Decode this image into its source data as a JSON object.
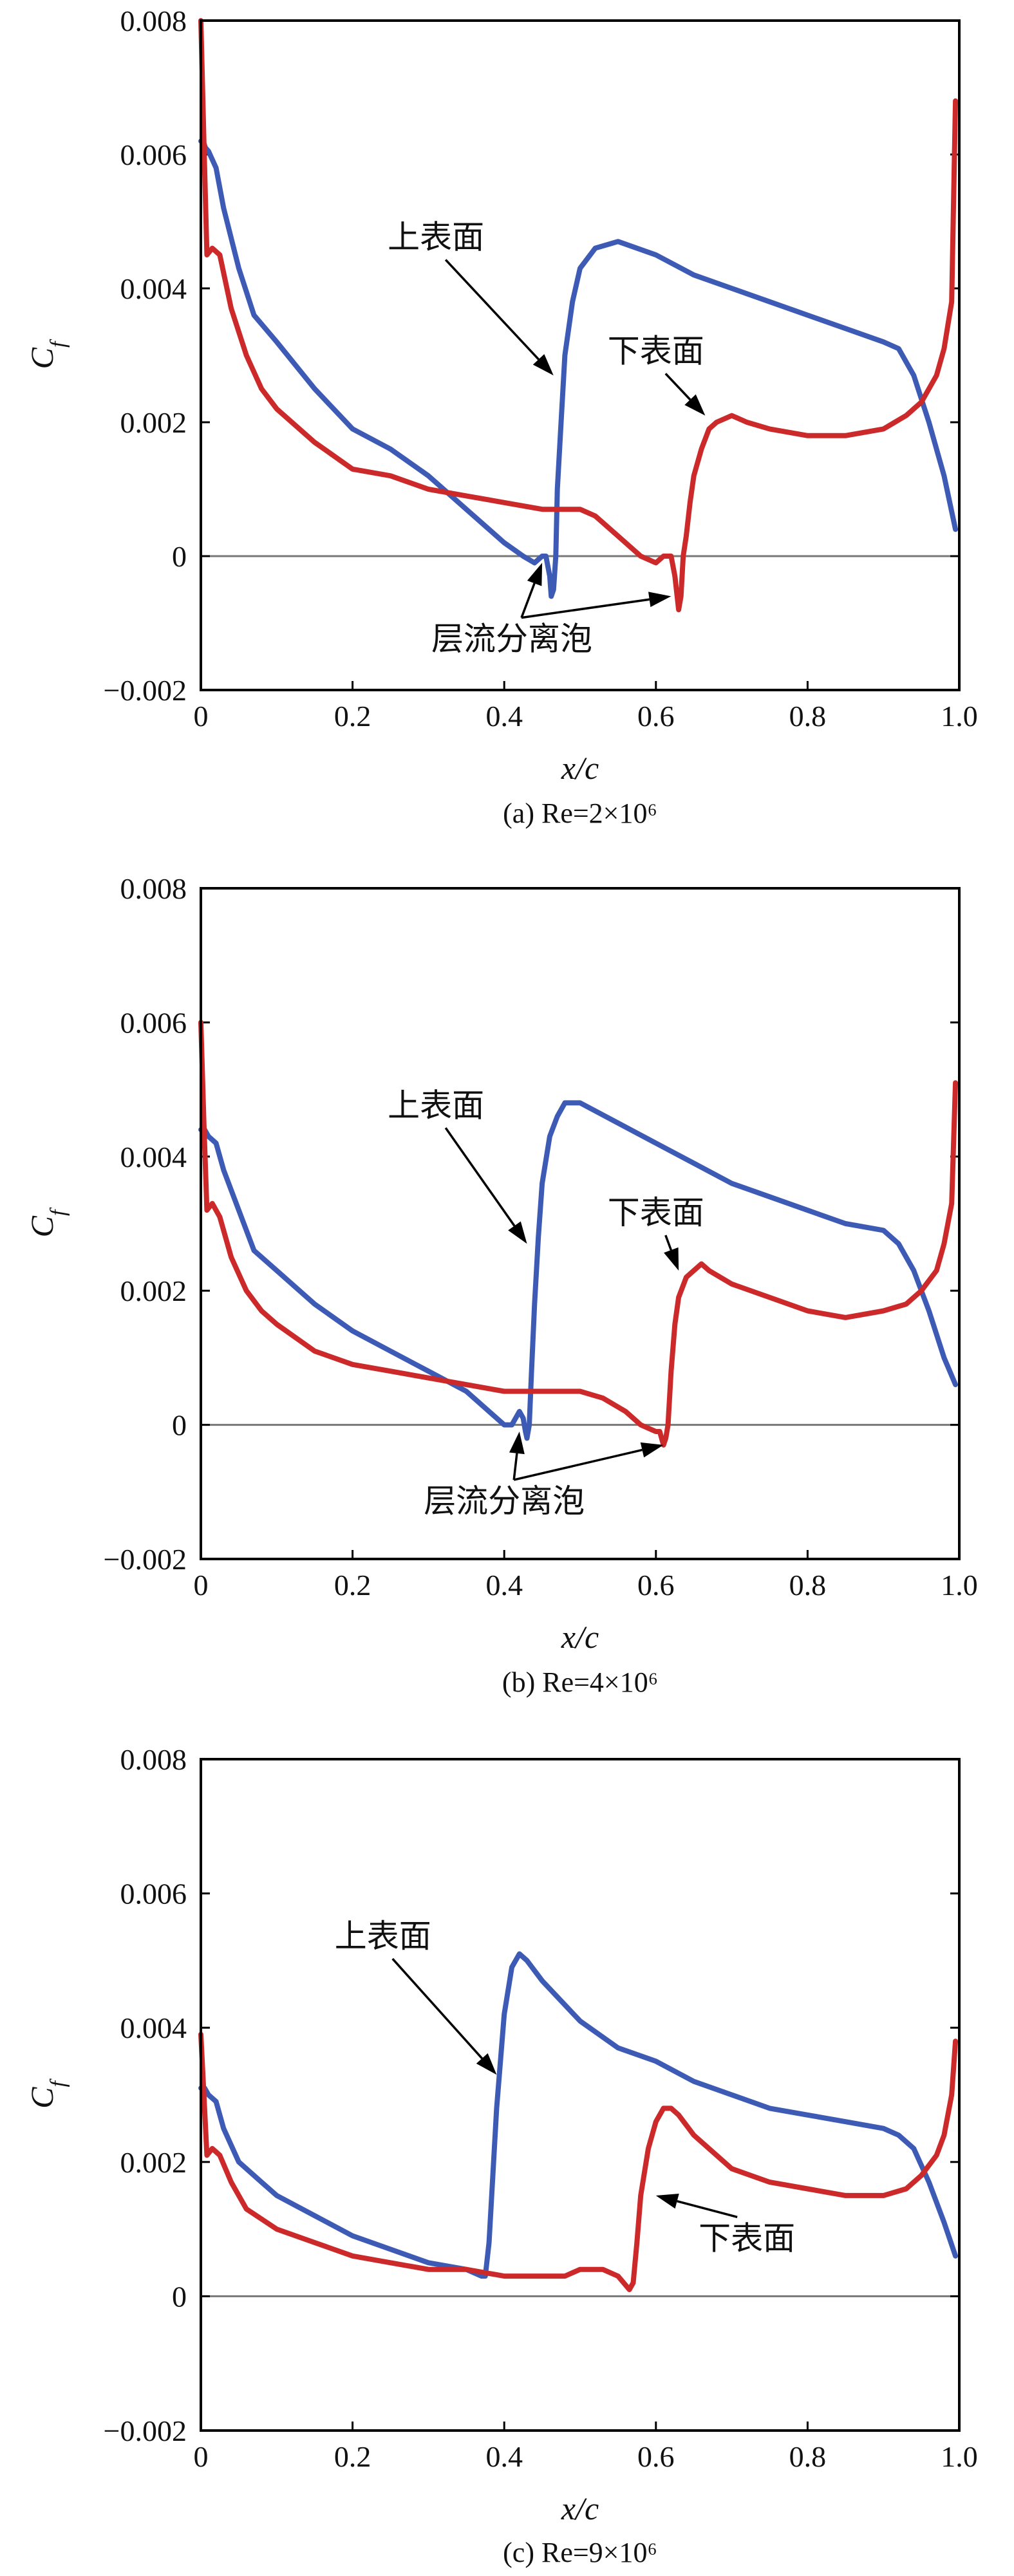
{
  "chart_data": [
    {
      "type": "line",
      "title": "",
      "caption": "(a) Re=2×10⁶",
      "xlabel": "x/c",
      "ylabel": "C_f",
      "xlim": [
        0,
        1.0
      ],
      "ylim": [
        -0.002,
        0.008
      ],
      "xticks": [
        "0",
        "0.2",
        "0.4",
        "0.6",
        "0.8",
        "1.0"
      ],
      "yticks": [
        "−0.002",
        "0",
        "0.002",
        "0.004",
        "0.006",
        "0.008"
      ],
      "zero_line": true,
      "series": [
        {
          "name": "上表面",
          "color": "#3d5bb5",
          "x": [
            0.0,
            0.003,
            0.006,
            0.01,
            0.02,
            0.03,
            0.05,
            0.07,
            0.1,
            0.15,
            0.2,
            0.25,
            0.3,
            0.35,
            0.4,
            0.425,
            0.44,
            0.45,
            0.455,
            0.46,
            0.462,
            0.465,
            0.468,
            0.47,
            0.475,
            0.48,
            0.49,
            0.5,
            0.52,
            0.55,
            0.6,
            0.65,
            0.7,
            0.75,
            0.8,
            0.85,
            0.9,
            0.92,
            0.94,
            0.96,
            0.98,
            0.995
          ],
          "y": [
            0.0062,
            0.0062,
            0.0061,
            0.00605,
            0.0058,
            0.0052,
            0.0043,
            0.0036,
            0.0032,
            0.0025,
            0.0019,
            0.0016,
            0.0012,
            0.0007,
            0.0002,
            0.0,
            -0.0001,
            0.0,
            0.0,
            -0.0003,
            -0.0006,
            -0.0005,
            0.0,
            0.001,
            0.002,
            0.003,
            0.0038,
            0.0043,
            0.0046,
            0.0047,
            0.0045,
            0.0042,
            0.004,
            0.0038,
            0.0036,
            0.0034,
            0.0032,
            0.0031,
            0.0027,
            0.002,
            0.0012,
            0.0004
          ]
        },
        {
          "name": "下表面",
          "color": "#cc2a2a",
          "x": [
            0.0,
            0.004,
            0.008,
            0.015,
            0.025,
            0.04,
            0.06,
            0.08,
            0.1,
            0.15,
            0.2,
            0.25,
            0.3,
            0.35,
            0.4,
            0.45,
            0.48,
            0.5,
            0.52,
            0.55,
            0.58,
            0.6,
            0.61,
            0.62,
            0.625,
            0.63,
            0.633,
            0.636,
            0.64,
            0.645,
            0.65,
            0.66,
            0.67,
            0.68,
            0.7,
            0.72,
            0.75,
            0.8,
            0.85,
            0.9,
            0.93,
            0.95,
            0.97,
            0.98,
            0.99,
            0.995
          ],
          "y": [
            0.008,
            0.0062,
            0.0045,
            0.0046,
            0.0045,
            0.0037,
            0.003,
            0.0025,
            0.0022,
            0.0017,
            0.0013,
            0.0012,
            0.001,
            0.0009,
            0.0008,
            0.0007,
            0.0007,
            0.0007,
            0.0006,
            0.0003,
            0.0,
            -0.0001,
            0.0,
            0.0,
            -0.0003,
            -0.0008,
            -0.0006,
            0.0,
            0.0003,
            0.0008,
            0.0012,
            0.0016,
            0.0019,
            0.002,
            0.0021,
            0.002,
            0.0019,
            0.0018,
            0.0018,
            0.0019,
            0.0021,
            0.0023,
            0.0027,
            0.0031,
            0.0038,
            0.0068
          ]
        }
      ],
      "annotations": [
        {
          "text": "上表面",
          "x": 0.31,
          "y": 0.0046,
          "arrow_to": [
            0.465,
            0.0027
          ]
        },
        {
          "text": "下表面",
          "x": 0.6,
          "y": 0.0029,
          "arrow_to": [
            0.665,
            0.0021
          ]
        },
        {
          "text": "层流分离泡",
          "x": 0.41,
          "y": -0.0014,
          "arrow_to_list": [
            [
              0.45,
              -0.0001
            ],
            [
              0.62,
              -0.0006
            ]
          ]
        }
      ]
    },
    {
      "type": "line",
      "title": "",
      "caption": "(b) Re=4×10⁶",
      "xlabel": "x/c",
      "ylabel": "C_f",
      "xlim": [
        0,
        1.0
      ],
      "ylim": [
        -0.002,
        0.008
      ],
      "xticks": [
        "0",
        "0.2",
        "0.4",
        "0.6",
        "0.8",
        "1.0"
      ],
      "yticks": [
        "−0.002",
        "0",
        "0.002",
        "0.004",
        "0.006",
        "0.008"
      ],
      "zero_line": true,
      "series": [
        {
          "name": "上表面",
          "color": "#3d5bb5",
          "x": [
            0.0,
            0.005,
            0.01,
            0.02,
            0.03,
            0.05,
            0.07,
            0.1,
            0.15,
            0.2,
            0.25,
            0.3,
            0.35,
            0.38,
            0.4,
            0.41,
            0.42,
            0.425,
            0.428,
            0.43,
            0.433,
            0.436,
            0.44,
            0.445,
            0.45,
            0.46,
            0.47,
            0.48,
            0.5,
            0.55,
            0.6,
            0.65,
            0.7,
            0.75,
            0.8,
            0.85,
            0.9,
            0.92,
            0.94,
            0.96,
            0.98,
            0.995
          ],
          "y": [
            0.0044,
            0.0044,
            0.0043,
            0.0042,
            0.0038,
            0.0032,
            0.0026,
            0.0023,
            0.0018,
            0.0014,
            0.0011,
            0.0008,
            0.0005,
            0.0002,
            0.0,
            0.0,
            0.0002,
            0.0001,
            -0.0001,
            -0.0002,
            0.0,
            0.0008,
            0.0018,
            0.0028,
            0.0036,
            0.0043,
            0.0046,
            0.0048,
            0.0048,
            0.0045,
            0.0042,
            0.0039,
            0.0036,
            0.0034,
            0.0032,
            0.003,
            0.0029,
            0.0027,
            0.0023,
            0.0017,
            0.001,
            0.0006
          ]
        },
        {
          "name": "下表面",
          "color": "#cc2a2a",
          "x": [
            0.0,
            0.004,
            0.008,
            0.015,
            0.025,
            0.04,
            0.06,
            0.08,
            0.1,
            0.15,
            0.2,
            0.25,
            0.3,
            0.35,
            0.4,
            0.45,
            0.48,
            0.5,
            0.53,
            0.56,
            0.58,
            0.6,
            0.605,
            0.61,
            0.613,
            0.616,
            0.62,
            0.625,
            0.63,
            0.64,
            0.65,
            0.66,
            0.67,
            0.7,
            0.75,
            0.8,
            0.85,
            0.9,
            0.93,
            0.95,
            0.97,
            0.98,
            0.99,
            0.995
          ],
          "y": [
            0.006,
            0.0045,
            0.0032,
            0.0033,
            0.0031,
            0.0025,
            0.002,
            0.0017,
            0.0015,
            0.0011,
            0.0009,
            0.0008,
            0.0007,
            0.0006,
            0.0005,
            0.0005,
            0.0005,
            0.0005,
            0.0004,
            0.0002,
            0.0,
            -0.0001,
            -0.0001,
            -0.0003,
            -0.0002,
            0.0,
            0.0008,
            0.0015,
            0.0019,
            0.0022,
            0.0023,
            0.0024,
            0.0023,
            0.0021,
            0.0019,
            0.0017,
            0.0016,
            0.0017,
            0.0018,
            0.002,
            0.0023,
            0.0027,
            0.0033,
            0.0051
          ]
        }
      ],
      "annotations": [
        {
          "text": "上表面",
          "x": 0.31,
          "y": 0.0046,
          "arrow_to": [
            0.43,
            0.0027
          ]
        },
        {
          "text": "下表面",
          "x": 0.6,
          "y": 0.003,
          "arrow_to": [
            0.63,
            0.0023
          ]
        },
        {
          "text": "层流分离泡",
          "x": 0.4,
          "y": -0.0013,
          "arrow_to_list": [
            [
              0.42,
              -0.0001
            ],
            [
              0.61,
              -0.0003
            ]
          ]
        }
      ]
    },
    {
      "type": "line",
      "title": "",
      "caption": "(c) Re=9×10⁶",
      "xlabel": "x/c",
      "ylabel": "C_f",
      "xlim": [
        0,
        1.0
      ],
      "ylim": [
        -0.002,
        0.008
      ],
      "xticks": [
        "0",
        "0.2",
        "0.4",
        "0.6",
        "0.8",
        "1.0"
      ],
      "yticks": [
        "−0.002",
        "0",
        "0.002",
        "0.004",
        "0.006",
        "0.008"
      ],
      "zero_line": true,
      "series": [
        {
          "name": "上表面",
          "color": "#3d5bb5",
          "x": [
            0.0,
            0.005,
            0.01,
            0.02,
            0.03,
            0.05,
            0.08,
            0.1,
            0.15,
            0.2,
            0.25,
            0.3,
            0.35,
            0.37,
            0.375,
            0.38,
            0.385,
            0.39,
            0.4,
            0.41,
            0.42,
            0.43,
            0.45,
            0.5,
            0.55,
            0.6,
            0.65,
            0.7,
            0.75,
            0.8,
            0.85,
            0.9,
            0.92,
            0.94,
            0.96,
            0.98,
            0.995
          ],
          "y": [
            0.0031,
            0.0031,
            0.003,
            0.0029,
            0.0025,
            0.002,
            0.0017,
            0.0015,
            0.0012,
            0.0009,
            0.0007,
            0.0005,
            0.0004,
            0.0003,
            0.0003,
            0.0008,
            0.0018,
            0.0028,
            0.0042,
            0.0049,
            0.0051,
            0.005,
            0.0047,
            0.0041,
            0.0037,
            0.0035,
            0.0032,
            0.003,
            0.0028,
            0.0027,
            0.0026,
            0.0025,
            0.0024,
            0.0022,
            0.0017,
            0.0011,
            0.0006
          ]
        },
        {
          "name": "下表面",
          "color": "#cc2a2a",
          "x": [
            0.0,
            0.004,
            0.008,
            0.015,
            0.025,
            0.04,
            0.06,
            0.1,
            0.15,
            0.2,
            0.25,
            0.3,
            0.35,
            0.4,
            0.45,
            0.48,
            0.5,
            0.53,
            0.55,
            0.565,
            0.57,
            0.575,
            0.58,
            0.59,
            0.6,
            0.61,
            0.62,
            0.63,
            0.65,
            0.7,
            0.75,
            0.8,
            0.85,
            0.9,
            0.93,
            0.95,
            0.97,
            0.98,
            0.99,
            0.995
          ],
          "y": [
            0.0039,
            0.003,
            0.0021,
            0.0022,
            0.0021,
            0.0017,
            0.0013,
            0.001,
            0.0008,
            0.0006,
            0.0005,
            0.0004,
            0.0004,
            0.0003,
            0.0003,
            0.0003,
            0.0004,
            0.0004,
            0.0003,
            0.0001,
            0.0002,
            0.0008,
            0.0015,
            0.0022,
            0.0026,
            0.0028,
            0.0028,
            0.0027,
            0.0024,
            0.0019,
            0.0017,
            0.0016,
            0.0015,
            0.0015,
            0.0016,
            0.0018,
            0.0021,
            0.0024,
            0.003,
            0.0038
          ]
        }
      ],
      "annotations": [
        {
          "text": "上表面",
          "x": 0.24,
          "y": 0.0052,
          "arrow_to": [
            0.39,
            0.0033
          ]
        },
        {
          "text": "下表面",
          "x": 0.72,
          "y": 0.0007,
          "arrow_to": [
            0.6,
            0.0015
          ]
        }
      ]
    }
  ]
}
